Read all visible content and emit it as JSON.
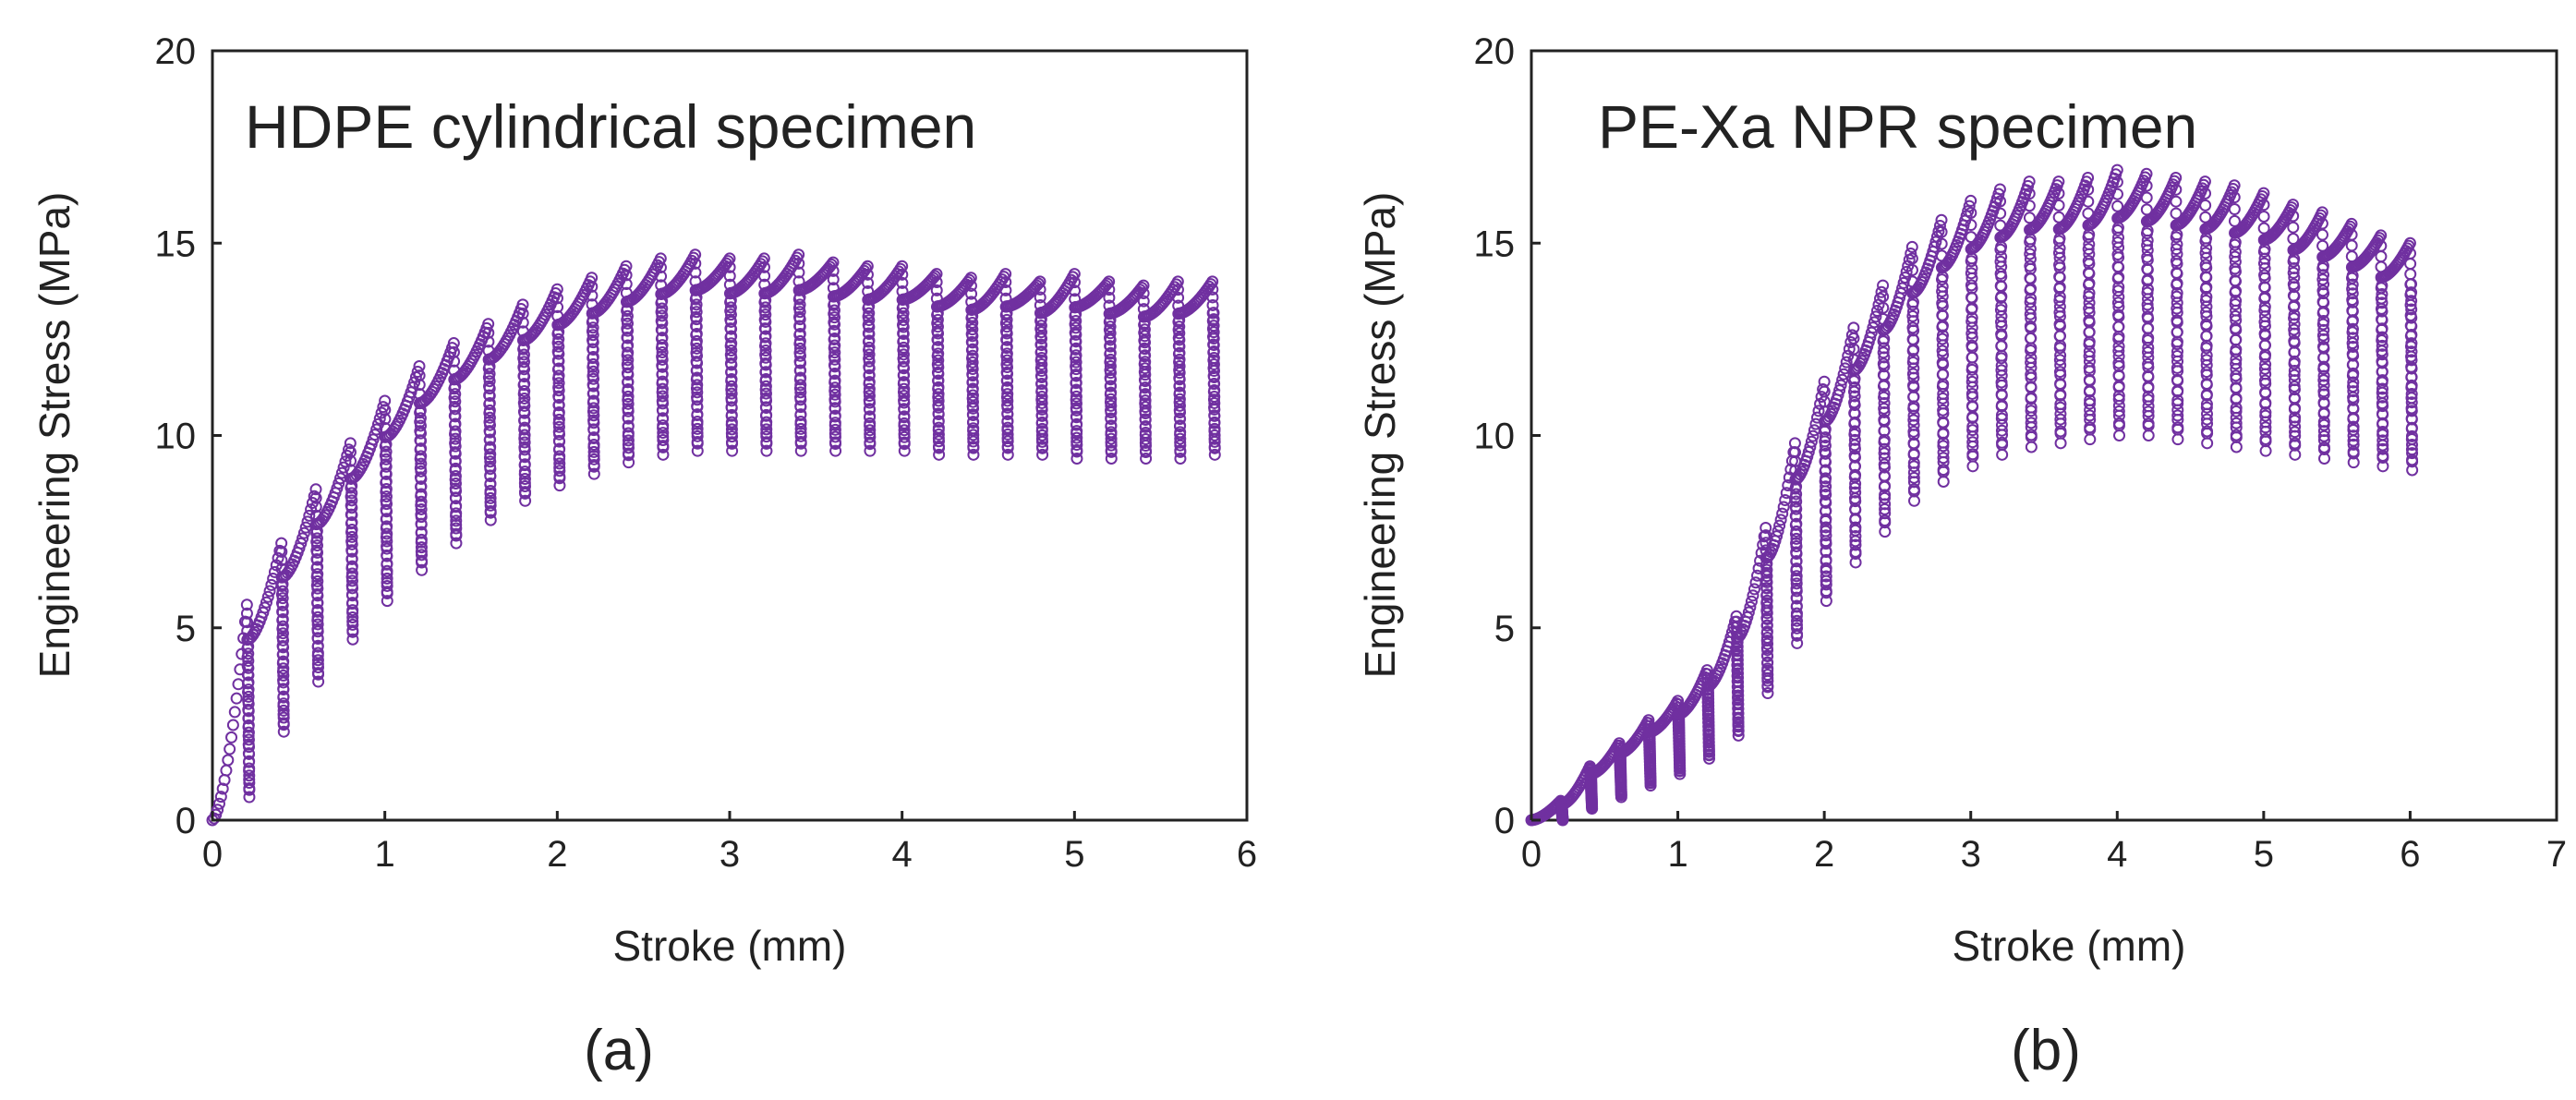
{
  "chart_data": [
    {
      "type": "scatter",
      "title": "HDPE cylindrical specimen",
      "caption": "(a)",
      "xlabel": "Stroke (mm)",
      "ylabel": "Engineering Stress (MPa)",
      "xlim": [
        0,
        6
      ],
      "ylim": [
        0,
        20
      ],
      "xticks": [
        0,
        1,
        2,
        3,
        4,
        5,
        6
      ],
      "yticks": [
        0,
        5,
        10,
        15,
        20
      ],
      "grid": false,
      "marker": "open-circle",
      "color": "#7030a0",
      "cycle_step": 0.2,
      "cycles": [
        {
          "x": 0.2,
          "peak": 5.6,
          "valley": 0.6
        },
        {
          "x": 0.4,
          "peak": 7.2,
          "valley": 2.3
        },
        {
          "x": 0.6,
          "peak": 8.6,
          "valley": 3.6
        },
        {
          "x": 0.8,
          "peak": 9.8,
          "valley": 4.7
        },
        {
          "x": 1.0,
          "peak": 10.9,
          "valley": 5.7
        },
        {
          "x": 1.2,
          "peak": 11.8,
          "valley": 6.5
        },
        {
          "x": 1.4,
          "peak": 12.4,
          "valley": 7.2
        },
        {
          "x": 1.6,
          "peak": 12.9,
          "valley": 7.8
        },
        {
          "x": 1.8,
          "peak": 13.4,
          "valley": 8.3
        },
        {
          "x": 2.0,
          "peak": 13.8,
          "valley": 8.7
        },
        {
          "x": 2.2,
          "peak": 14.1,
          "valley": 9.0
        },
        {
          "x": 2.4,
          "peak": 14.4,
          "valley": 9.3
        },
        {
          "x": 2.6,
          "peak": 14.6,
          "valley": 9.5
        },
        {
          "x": 2.8,
          "peak": 14.7,
          "valley": 9.6
        },
        {
          "x": 3.0,
          "peak": 14.6,
          "valley": 9.6
        },
        {
          "x": 3.2,
          "peak": 14.6,
          "valley": 9.6
        },
        {
          "x": 3.4,
          "peak": 14.7,
          "valley": 9.6
        },
        {
          "x": 3.6,
          "peak": 14.5,
          "valley": 9.6
        },
        {
          "x": 3.8,
          "peak": 14.4,
          "valley": 9.6
        },
        {
          "x": 4.0,
          "peak": 14.4,
          "valley": 9.6
        },
        {
          "x": 4.2,
          "peak": 14.2,
          "valley": 9.5
        },
        {
          "x": 4.4,
          "peak": 14.1,
          "valley": 9.5
        },
        {
          "x": 4.6,
          "peak": 14.2,
          "valley": 9.5
        },
        {
          "x": 4.8,
          "peak": 14.0,
          "valley": 9.5
        },
        {
          "x": 5.0,
          "peak": 14.2,
          "valley": 9.4
        },
        {
          "x": 5.2,
          "peak": 14.0,
          "valley": 9.4
        },
        {
          "x": 5.4,
          "peak": 13.9,
          "valley": 9.4
        },
        {
          "x": 5.6,
          "peak": 14.0,
          "valley": 9.4
        },
        {
          "x": 5.8,
          "peak": 14.0,
          "valley": 9.5
        }
      ]
    },
    {
      "type": "scatter",
      "title": "PE-Xa NPR specimen",
      "caption": "(b)",
      "xlabel": "Stroke (mm)",
      "ylabel": "Engineering Stress (MPa)",
      "xlim": [
        0,
        7
      ],
      "ylim": [
        0,
        20
      ],
      "xticks": [
        0,
        1,
        2,
        3,
        4,
        5,
        6,
        7
      ],
      "yticks": [
        0,
        5,
        10,
        15,
        20
      ],
      "grid": false,
      "marker": "open-circle",
      "color": "#7030a0",
      "cycle_step": 0.2,
      "cycles": [
        {
          "x": 0.2,
          "peak": 0.5,
          "valley": 0.0
        },
        {
          "x": 0.4,
          "peak": 1.4,
          "valley": 0.3
        },
        {
          "x": 0.6,
          "peak": 2.0,
          "valley": 0.6
        },
        {
          "x": 0.8,
          "peak": 2.6,
          "valley": 0.9
        },
        {
          "x": 1.0,
          "peak": 3.1,
          "valley": 1.2
        },
        {
          "x": 1.2,
          "peak": 3.9,
          "valley": 1.6
        },
        {
          "x": 1.4,
          "peak": 5.3,
          "valley": 2.2
        },
        {
          "x": 1.6,
          "peak": 7.6,
          "valley": 3.3
        },
        {
          "x": 1.8,
          "peak": 9.8,
          "valley": 4.6
        },
        {
          "x": 2.0,
          "peak": 11.4,
          "valley": 5.7
        },
        {
          "x": 2.2,
          "peak": 12.8,
          "valley": 6.7
        },
        {
          "x": 2.4,
          "peak": 13.9,
          "valley": 7.5
        },
        {
          "x": 2.6,
          "peak": 14.9,
          "valley": 8.3
        },
        {
          "x": 2.8,
          "peak": 15.6,
          "valley": 8.8
        },
        {
          "x": 3.0,
          "peak": 16.1,
          "valley": 9.2
        },
        {
          "x": 3.2,
          "peak": 16.4,
          "valley": 9.5
        },
        {
          "x": 3.4,
          "peak": 16.6,
          "valley": 9.7
        },
        {
          "x": 3.6,
          "peak": 16.6,
          "valley": 9.8
        },
        {
          "x": 3.8,
          "peak": 16.7,
          "valley": 9.9
        },
        {
          "x": 4.0,
          "peak": 16.9,
          "valley": 10.0
        },
        {
          "x": 4.2,
          "peak": 16.8,
          "valley": 10.0
        },
        {
          "x": 4.4,
          "peak": 16.7,
          "valley": 9.9
        },
        {
          "x": 4.6,
          "peak": 16.6,
          "valley": 9.8
        },
        {
          "x": 4.8,
          "peak": 16.5,
          "valley": 9.7
        },
        {
          "x": 5.0,
          "peak": 16.3,
          "valley": 9.6
        },
        {
          "x": 5.2,
          "peak": 16.0,
          "valley": 9.5
        },
        {
          "x": 5.4,
          "peak": 15.8,
          "valley": 9.4
        },
        {
          "x": 5.6,
          "peak": 15.5,
          "valley": 9.3
        },
        {
          "x": 5.8,
          "peak": 15.2,
          "valley": 9.2
        },
        {
          "x": 6.0,
          "peak": 15.0,
          "valley": 9.1
        }
      ]
    }
  ]
}
